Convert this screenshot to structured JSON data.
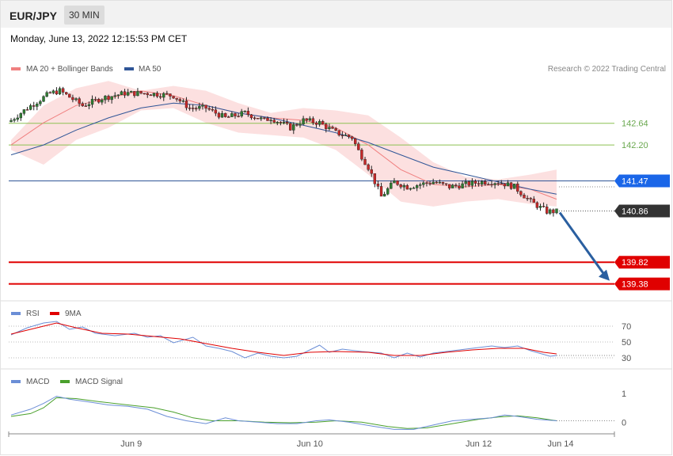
{
  "header": {
    "symbol": "EUR/JPY",
    "interval": "30 MIN"
  },
  "datetime": "Monday, June 13, 2022 12:15:53 PM CET",
  "legend": {
    "main": [
      {
        "label": "MA 20 + Bollinger Bands",
        "color": "#f08080"
      },
      {
        "label": "MA 50",
        "color": "#2f5597"
      }
    ],
    "credit": "Research © 2022 Trading Central",
    "rsi": [
      {
        "label": "RSI",
        "color": "#6b8ed6"
      },
      {
        "label": "9MA",
        "color": "#e00000"
      }
    ],
    "macd": [
      {
        "label": "MACD",
        "color": "#6b8ed6"
      },
      {
        "label": "MACD Signal",
        "color": "#4aa02c"
      }
    ]
  },
  "colors": {
    "up_candle": "#2e7d32",
    "down_candle": "#c62828",
    "bollinger_fill": "#fbd6d6",
    "ma20": "#f08080",
    "ma50": "#2f5597",
    "resistance": "#8cc152",
    "support": "#e00000",
    "pivot": "#1a66e8",
    "current": "#333333",
    "arrow": "#2a5fa0"
  },
  "chart_data": [
    {
      "type": "candlestick",
      "name": "price",
      "ylim": [
        139.1,
        143.6
      ],
      "x_ticks": [
        "Jun 9",
        "Jun 10",
        "Jun 12",
        "Jun 14"
      ],
      "price_path": [
        [
          0,
          142.7
        ],
        [
          5,
          142.95
        ],
        [
          12,
          143.25
        ],
        [
          15,
          143.3
        ],
        [
          22,
          143.0
        ],
        [
          28,
          143.15
        ],
        [
          35,
          143.25
        ],
        [
          42,
          143.25
        ],
        [
          50,
          143.2
        ],
        [
          55,
          142.95
        ],
        [
          60,
          142.95
        ],
        [
          66,
          142.75
        ],
        [
          72,
          142.85
        ],
        [
          78,
          142.7
        ],
        [
          80,
          142.75
        ],
        [
          86,
          142.55
        ],
        [
          90,
          142.7
        ],
        [
          95,
          142.65
        ],
        [
          100,
          142.45
        ],
        [
          105,
          142.35
        ],
        [
          107,
          142.08
        ],
        [
          110,
          141.75
        ],
        [
          114,
          141.15
        ],
        [
          118,
          141.45
        ],
        [
          122,
          141.35
        ],
        [
          130,
          141.45
        ],
        [
          135,
          141.35
        ],
        [
          140,
          141.4
        ],
        [
          145,
          141.45
        ],
        [
          150,
          141.45
        ],
        [
          155,
          141.35
        ],
        [
          160,
          141.05
        ],
        [
          165,
          140.85
        ],
        [
          168,
          140.85
        ]
      ],
      "ma20_points": [
        [
          0,
          142.2
        ],
        [
          10,
          142.65
        ],
        [
          20,
          143.0
        ],
        [
          30,
          143.15
        ],
        [
          40,
          143.3
        ],
        [
          50,
          143.2
        ],
        [
          60,
          143.0
        ],
        [
          70,
          142.85
        ],
        [
          80,
          142.75
        ],
        [
          90,
          142.7
        ],
        [
          100,
          142.55
        ],
        [
          110,
          142.2
        ],
        [
          120,
          141.7
        ],
        [
          130,
          141.4
        ],
        [
          140,
          141.35
        ],
        [
          150,
          141.4
        ],
        [
          160,
          141.3
        ],
        [
          168,
          141.1
        ]
      ],
      "ma50_points": [
        [
          0,
          142.0
        ],
        [
          10,
          142.2
        ],
        [
          20,
          142.5
        ],
        [
          30,
          142.75
        ],
        [
          40,
          142.95
        ],
        [
          50,
          143.05
        ],
        [
          60,
          143.0
        ],
        [
          70,
          142.85
        ],
        [
          80,
          142.75
        ],
        [
          90,
          142.6
        ],
        [
          100,
          142.45
        ],
        [
          110,
          142.25
        ],
        [
          120,
          142.0
        ],
        [
          130,
          141.75
        ],
        [
          140,
          141.6
        ],
        [
          150,
          141.45
        ],
        [
          160,
          141.3
        ],
        [
          168,
          141.2
        ]
      ],
      "boll_upper": [
        [
          0,
          142.3
        ],
        [
          10,
          143.0
        ],
        [
          20,
          143.35
        ],
        [
          30,
          143.5
        ],
        [
          40,
          143.3
        ],
        [
          50,
          143.4
        ],
        [
          60,
          143.3
        ],
        [
          70,
          143.05
        ],
        [
          80,
          142.85
        ],
        [
          90,
          142.95
        ],
        [
          100,
          142.9
        ],
        [
          110,
          142.8
        ],
        [
          120,
          142.35
        ],
        [
          130,
          141.85
        ],
        [
          140,
          141.55
        ],
        [
          150,
          141.5
        ],
        [
          160,
          141.6
        ],
        [
          168,
          141.7
        ]
      ],
      "boll_lower": [
        [
          0,
          142.1
        ],
        [
          10,
          141.8
        ],
        [
          20,
          142.3
        ],
        [
          30,
          142.55
        ],
        [
          40,
          142.9
        ],
        [
          50,
          142.95
        ],
        [
          60,
          142.65
        ],
        [
          70,
          142.45
        ],
        [
          80,
          142.4
        ],
        [
          90,
          142.35
        ],
        [
          100,
          142.1
        ],
        [
          110,
          141.6
        ],
        [
          120,
          141.05
        ],
        [
          130,
          140.95
        ],
        [
          140,
          141.05
        ],
        [
          150,
          141.1
        ],
        [
          160,
          141.0
        ],
        [
          168,
          140.95
        ]
      ],
      "levels": [
        {
          "value": 142.64,
          "label": "142.64",
          "kind": "resistance"
        },
        {
          "value": 142.2,
          "label": "142.20",
          "kind": "resistance"
        },
        {
          "value": 141.47,
          "label": "141.47",
          "kind": "pivot"
        },
        {
          "value": 140.86,
          "label": "140.86",
          "kind": "current"
        },
        {
          "value": 139.82,
          "label": "139.82",
          "kind": "support"
        },
        {
          "value": 139.38,
          "label": "139.38",
          "kind": "support"
        }
      ],
      "forecast_arrow": {
        "from": 140.86,
        "to": 139.38
      }
    },
    {
      "type": "line",
      "name": "RSI",
      "ylim": [
        20,
        80
      ],
      "y_ticks": [
        70,
        50,
        30
      ],
      "series": [
        {
          "name": "RSI",
          "points": [
            [
              0,
              59
            ],
            [
              5,
              68
            ],
            [
              10,
              74
            ],
            [
              14,
              76
            ],
            [
              18,
              66
            ],
            [
              22,
              69
            ],
            [
              26,
              61
            ],
            [
              32,
              58
            ],
            [
              38,
              61
            ],
            [
              42,
              56
            ],
            [
              46,
              58
            ],
            [
              50,
              49
            ],
            [
              56,
              56
            ],
            [
              60,
              45
            ],
            [
              64,
              42
            ],
            [
              68,
              38
            ],
            [
              72,
              30
            ],
            [
              76,
              36
            ],
            [
              80,
              32
            ],
            [
              84,
              30
            ],
            [
              88,
              32
            ],
            [
              92,
              40
            ],
            [
              95,
              46
            ],
            [
              98,
              37
            ],
            [
              102,
              41
            ],
            [
              108,
              38
            ],
            [
              114,
              36
            ],
            [
              118,
              30
            ],
            [
              122,
              36
            ],
            [
              126,
              31
            ],
            [
              130,
              36
            ],
            [
              136,
              39
            ],
            [
              142,
              42
            ],
            [
              148,
              45
            ],
            [
              152,
              43
            ],
            [
              156,
              45
            ],
            [
              160,
              39
            ],
            [
              166,
              32
            ],
            [
              168,
              33
            ]
          ]
        },
        {
          "name": "9MA",
          "points": [
            [
              0,
              60
            ],
            [
              10,
              70
            ],
            [
              14,
              74
            ],
            [
              20,
              68
            ],
            [
              28,
              61
            ],
            [
              36,
              60
            ],
            [
              44,
              57
            ],
            [
              52,
              54
            ],
            [
              60,
              48
            ],
            [
              68,
              42
            ],
            [
              76,
              37
            ],
            [
              84,
              33
            ],
            [
              92,
              37
            ],
            [
              100,
              38
            ],
            [
              110,
              37
            ],
            [
              118,
              33
            ],
            [
              126,
              33
            ],
            [
              134,
              37
            ],
            [
              142,
              40
            ],
            [
              150,
              42
            ],
            [
              158,
              42
            ],
            [
              164,
              37
            ],
            [
              168,
              35
            ]
          ]
        }
      ]
    },
    {
      "type": "line",
      "name": "MACD",
      "ylim": [
        -0.35,
        1.3
      ],
      "y_ticks": [
        1,
        0
      ],
      "series": [
        {
          "name": "MACD",
          "points": [
            [
              0,
              0.25
            ],
            [
              6,
              0.45
            ],
            [
              10,
              0.65
            ],
            [
              14,
              0.9
            ],
            [
              18,
              0.8
            ],
            [
              24,
              0.7
            ],
            [
              30,
              0.6
            ],
            [
              36,
              0.55
            ],
            [
              42,
              0.45
            ],
            [
              48,
              0.2
            ],
            [
              54,
              0.05
            ],
            [
              60,
              -0.05
            ],
            [
              66,
              0.15
            ],
            [
              70,
              0.05
            ],
            [
              76,
              0.0
            ],
            [
              82,
              -0.05
            ],
            [
              88,
              -0.05
            ],
            [
              94,
              0.05
            ],
            [
              98,
              0.08
            ],
            [
              104,
              0.0
            ],
            [
              112,
              -0.15
            ],
            [
              118,
              -0.25
            ],
            [
              124,
              -0.25
            ],
            [
              130,
              -0.1
            ],
            [
              136,
              0.05
            ],
            [
              142,
              0.1
            ],
            [
              148,
              0.15
            ],
            [
              152,
              0.25
            ],
            [
              156,
              0.2
            ],
            [
              162,
              0.1
            ],
            [
              168,
              0.05
            ]
          ]
        },
        {
          "name": "MACD Signal",
          "points": [
            [
              0,
              0.2
            ],
            [
              6,
              0.3
            ],
            [
              10,
              0.5
            ],
            [
              14,
              0.85
            ],
            [
              20,
              0.82
            ],
            [
              28,
              0.7
            ],
            [
              36,
              0.6
            ],
            [
              44,
              0.5
            ],
            [
              50,
              0.35
            ],
            [
              56,
              0.15
            ],
            [
              62,
              0.05
            ],
            [
              70,
              0.05
            ],
            [
              78,
              0.0
            ],
            [
              86,
              -0.02
            ],
            [
              94,
              0.0
            ],
            [
              100,
              0.05
            ],
            [
              108,
              0.0
            ],
            [
              116,
              -0.15
            ],
            [
              122,
              -0.22
            ],
            [
              128,
              -0.2
            ],
            [
              136,
              -0.05
            ],
            [
              144,
              0.1
            ],
            [
              150,
              0.18
            ],
            [
              156,
              0.22
            ],
            [
              162,
              0.15
            ],
            [
              168,
              0.05
            ]
          ]
        }
      ]
    }
  ]
}
